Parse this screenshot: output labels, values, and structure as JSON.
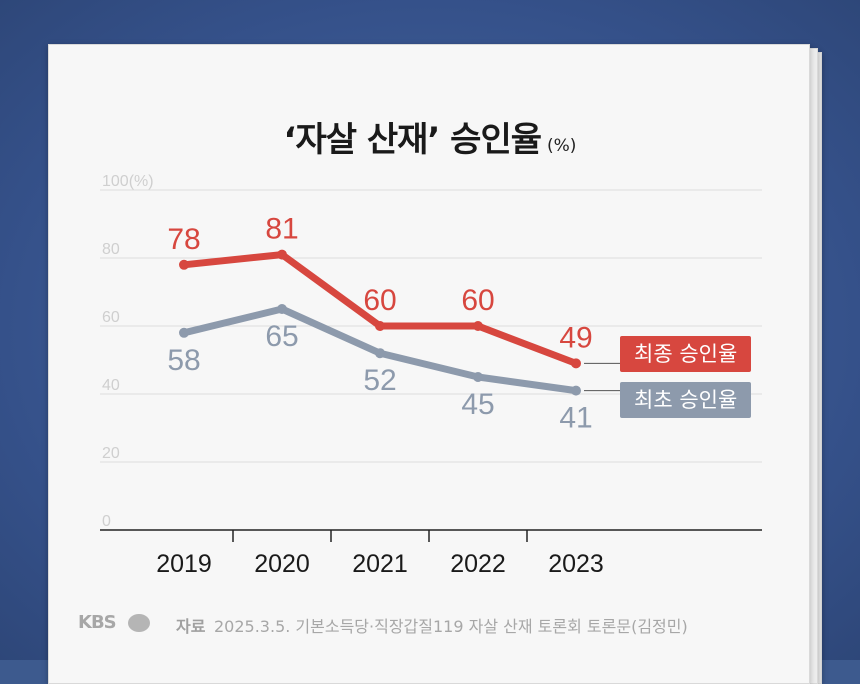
{
  "title": "‘자살 산재’ 승인율",
  "title_unit": "(%)",
  "legend": {
    "final": "최종 승인율",
    "initial": "최초 승인율"
  },
  "footer": {
    "brand": "KBS",
    "source_label": "자료",
    "source_text": "2025.3.5. 기본소득당·직장갑질119 자살 산재 토론회 토론문(김정민)"
  },
  "colors": {
    "final": "#d7473f",
    "initial": "#8d9aac",
    "background": "#3d5a8e"
  },
  "chart_data": {
    "type": "line",
    "categories": [
      "2019",
      "2020",
      "2021",
      "2022",
      "2023"
    ],
    "series": [
      {
        "name": "최종 승인율",
        "values": [
          78,
          81,
          60,
          60,
          49
        ]
      },
      {
        "name": "최초 승인율",
        "values": [
          58,
          65,
          52,
          45,
          41
        ]
      }
    ],
    "ylim": [
      0,
      100
    ],
    "yticks": [
      "100(%)",
      "80",
      "60",
      "40",
      "20",
      "0"
    ],
    "grid": true,
    "legend_position": "right"
  }
}
